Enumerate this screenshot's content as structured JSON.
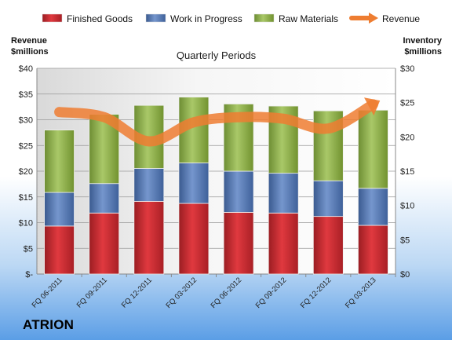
{
  "brand": "ATRION",
  "chart_data": {
    "type": "bar",
    "title": "Quarterly Periods",
    "ylabel_left": "Revenue $millions",
    "ylabel_left_lines": [
      "Revenue",
      "$millions"
    ],
    "ylabel_right": "Inventory $millions",
    "ylabel_right_lines": [
      "Inventory",
      "$millions"
    ],
    "categories": [
      "FQ 06-2011",
      "FQ 09-2011",
      "FQ 12-2011",
      "FQ 03-2012",
      "FQ 06-2012",
      "FQ 09-2012",
      "FQ 12-2012",
      "FQ 03-2013"
    ],
    "left_axis": {
      "range": [
        0,
        40
      ],
      "ticks": [
        0,
        5,
        10,
        15,
        20,
        25,
        30,
        35,
        40
      ],
      "tick_labels": [
        "$-",
        "$5",
        "$10",
        "$15",
        "$20",
        "$25",
        "$30",
        "$35",
        "$40"
      ]
    },
    "right_axis": {
      "range": [
        0,
        30
      ],
      "ticks": [
        0,
        5,
        10,
        15,
        20,
        25,
        30
      ],
      "tick_labels": [
        "$0",
        "$5",
        "$10",
        "$15",
        "$20",
        "$25",
        "$30"
      ]
    },
    "stacked_series": [
      {
        "name": "Finished Goods",
        "axis": "right",
        "color": "#c0282d",
        "values": [
          7.0,
          8.9,
          10.6,
          10.3,
          9.0,
          8.9,
          8.4,
          7.1
        ]
      },
      {
        "name": "Work in Progress",
        "axis": "right",
        "color": "#4f74b0",
        "values": [
          4.9,
          4.3,
          4.8,
          5.9,
          6.0,
          5.8,
          5.2,
          5.4
        ]
      },
      {
        "name": "Raw Materials",
        "axis": "right",
        "color": "#8fb04a",
        "values": [
          9.1,
          10.1,
          9.2,
          9.6,
          9.8,
          9.8,
          10.2,
          11.4
        ]
      }
    ],
    "line_series": [
      {
        "name": "Revenue",
        "axis": "left",
        "color": "#ee7d31",
        "values": [
          31.5,
          30.5,
          25.8,
          29.5,
          30.5,
          30.2,
          28.3,
          33.0
        ]
      }
    ],
    "legend_position": "top",
    "grid": true
  }
}
